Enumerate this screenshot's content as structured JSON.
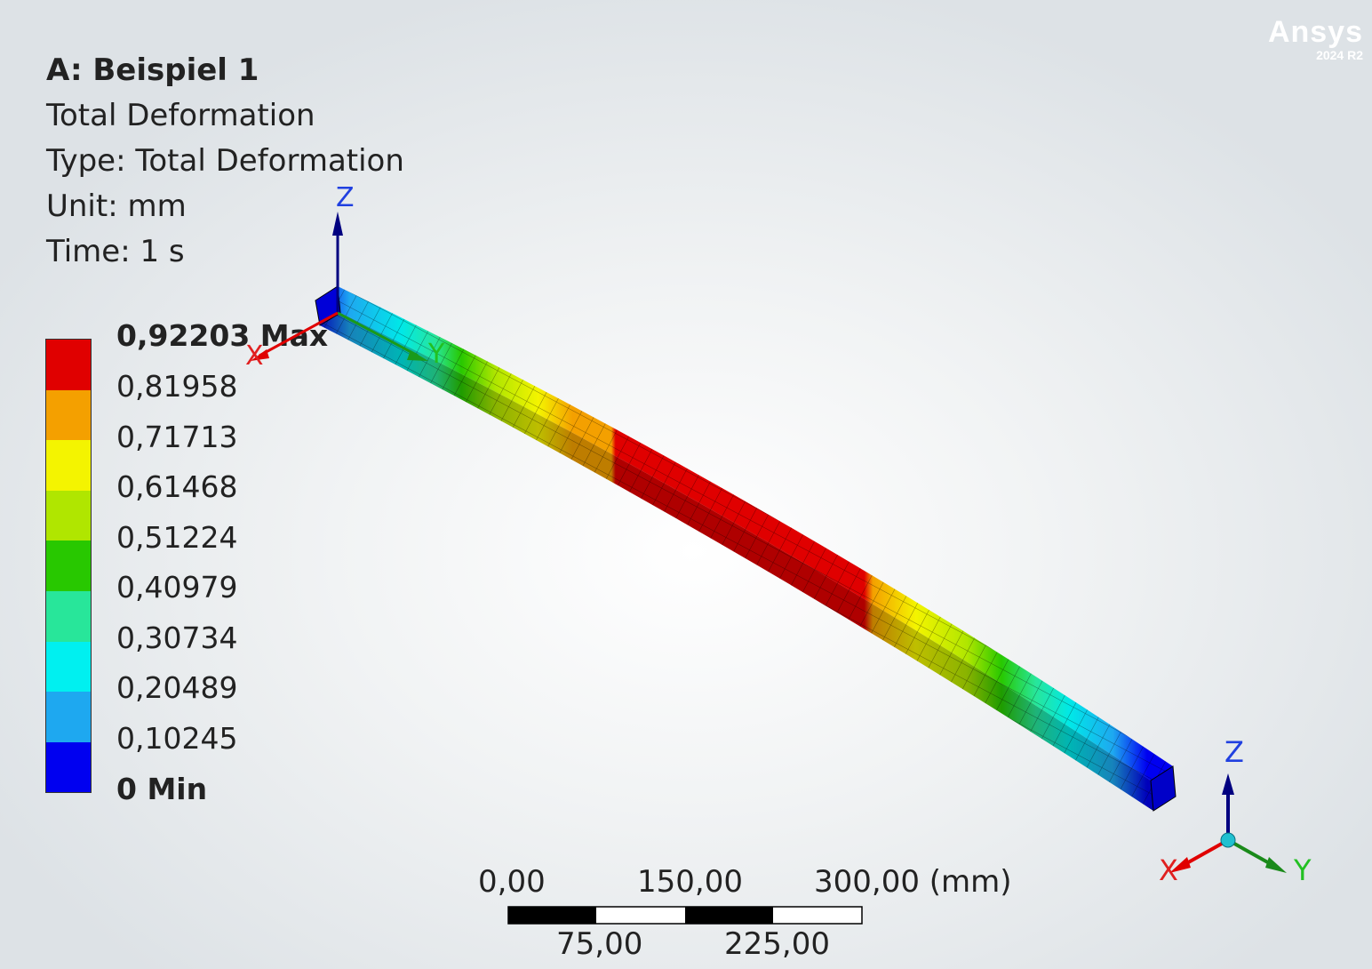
{
  "header": {
    "system": "A: Beispiel 1",
    "result": "Total Deformation",
    "type": "Type: Total Deformation",
    "unit": "Unit: mm",
    "time": "Time: 1 s"
  },
  "logo": {
    "brand": "Ansys",
    "version": "2024 R2"
  },
  "legend": {
    "labels": [
      "0,92203 Max",
      "0,81958",
      "0,71713",
      "0,61468",
      "0,51224",
      "0,40979",
      "0,30734",
      "0,20489",
      "0,10245",
      "0 Min"
    ],
    "colors": [
      "#e00000",
      "#f4a000",
      "#f4f400",
      "#b0e600",
      "#28c800",
      "#28e69a",
      "#00f0f0",
      "#1ea8f0",
      "#0000f0"
    ]
  },
  "triad": {
    "origin_axes": {
      "x": "X",
      "y": "Y",
      "z": "Z"
    },
    "corner_axes": {
      "x": "X",
      "y": "Y",
      "z": "Z"
    }
  },
  "scale_bar": {
    "top_labels": [
      "0,00",
      "150,00",
      "300,00 (mm)"
    ],
    "bottom_labels": [
      "75,00",
      "225,00"
    ]
  }
}
